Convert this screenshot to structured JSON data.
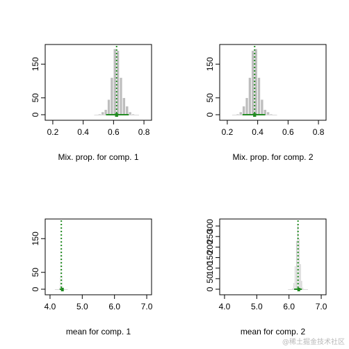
{
  "chart_data": [
    {
      "type": "bar",
      "xlabel": "Mix. prop. for comp. 1",
      "xlim": [
        0.15,
        0.85
      ],
      "ylim": [
        0,
        200
      ],
      "xticks": [
        "0.2",
        "0.4",
        "0.6",
        "0.8"
      ],
      "xtick_values": [
        0.2,
        0.4,
        0.6,
        0.8
      ],
      "yticks": [
        "0",
        "50",
        "150"
      ],
      "ytick_values": [
        0,
        50,
        150
      ],
      "bins": [
        {
          "x0": 0.5,
          "x1": 0.52,
          "count": 2
        },
        {
          "x0": 0.52,
          "x1": 0.54,
          "count": 8
        },
        {
          "x0": 0.54,
          "x1": 0.56,
          "count": 15
        },
        {
          "x0": 0.56,
          "x1": 0.58,
          "count": 45
        },
        {
          "x0": 0.58,
          "x1": 0.6,
          "count": 110
        },
        {
          "x0": 0.6,
          "x1": 0.62,
          "count": 195
        },
        {
          "x0": 0.62,
          "x1": 0.64,
          "count": 190
        },
        {
          "x0": 0.64,
          "x1": 0.66,
          "count": 110
        },
        {
          "x0": 0.66,
          "x1": 0.68,
          "count": 50
        },
        {
          "x0": 0.68,
          "x1": 0.7,
          "count": 25
        },
        {
          "x0": 0.7,
          "x1": 0.72,
          "count": 8
        },
        {
          "x0": 0.72,
          "x1": 0.74,
          "count": 2
        }
      ],
      "mean_line": 0.62,
      "interval": [
        0.55,
        0.7
      ],
      "interval_inner": [
        0.61,
        0.63
      ],
      "colors": {
        "bars": "#bebebe",
        "marker": "#228b22"
      }
    },
    {
      "type": "bar",
      "xlabel": "Mix. prop. for comp. 2",
      "xlim": [
        0.15,
        0.85
      ],
      "ylim": [
        0,
        200
      ],
      "xticks": [
        "0.2",
        "0.4",
        "0.6",
        "0.8"
      ],
      "xtick_values": [
        0.2,
        0.4,
        0.6,
        0.8
      ],
      "yticks": [
        "0",
        "50",
        "150"
      ],
      "ytick_values": [
        0,
        50,
        150
      ],
      "bins": [
        {
          "x0": 0.26,
          "x1": 0.28,
          "count": 2
        },
        {
          "x0": 0.28,
          "x1": 0.3,
          "count": 8
        },
        {
          "x0": 0.3,
          "x1": 0.32,
          "count": 25
        },
        {
          "x0": 0.32,
          "x1": 0.34,
          "count": 50
        },
        {
          "x0": 0.34,
          "x1": 0.36,
          "count": 110
        },
        {
          "x0": 0.36,
          "x1": 0.38,
          "count": 190
        },
        {
          "x0": 0.38,
          "x1": 0.4,
          "count": 195
        },
        {
          "x0": 0.4,
          "x1": 0.42,
          "count": 110
        },
        {
          "x0": 0.42,
          "x1": 0.44,
          "count": 45
        },
        {
          "x0": 0.44,
          "x1": 0.46,
          "count": 15
        },
        {
          "x0": 0.46,
          "x1": 0.48,
          "count": 8
        },
        {
          "x0": 0.48,
          "x1": 0.5,
          "count": 2
        }
      ],
      "mean_line": 0.38,
      "interval": [
        0.3,
        0.45
      ],
      "interval_inner": [
        0.37,
        0.39
      ],
      "colors": {
        "bars": "#bebebe",
        "marker": "#228b22"
      }
    },
    {
      "type": "bar",
      "xlabel": "mean for comp. 1",
      "xlim": [
        3.85,
        7.15
      ],
      "ylim": [
        0,
        200
      ],
      "xticks": [
        "4.0",
        "5.0",
        "6.0",
        "7.0"
      ],
      "xtick_values": [
        4.0,
        5.0,
        6.0,
        7.0
      ],
      "yticks": [
        "0",
        "50",
        "150"
      ],
      "ytick_values": [
        0,
        50,
        150
      ],
      "bins": [
        {
          "x0": 4.28,
          "x1": 4.3,
          "count": 6
        },
        {
          "x0": 4.3,
          "x1": 4.32,
          "count": 35
        },
        {
          "x0": 4.32,
          "x1": 4.34,
          "count": 120
        },
        {
          "x0": 4.34,
          "x1": 4.36,
          "count": 180
        },
        {
          "x0": 4.36,
          "x1": 4.38,
          "count": 110
        },
        {
          "x0": 4.38,
          "x1": 4.4,
          "count": 40
        },
        {
          "x0": 4.4,
          "x1": 4.42,
          "count": 8
        }
      ],
      "mean_line": 4.35,
      "interval": [
        4.3,
        4.41
      ],
      "interval_inner": [
        4.34,
        4.36
      ],
      "colors": {
        "bars": "#bebebe",
        "marker": "#228b22"
      }
    },
    {
      "type": "bar",
      "xlabel": "mean for comp. 2",
      "xlim": [
        3.85,
        7.15
      ],
      "ylim": [
        0,
        320
      ],
      "xticks": [
        "4.0",
        "5.0",
        "6.0",
        "7.0"
      ],
      "xtick_values": [
        4.0,
        5.0,
        6.0,
        7.0
      ],
      "yticks": [
        "0",
        "50",
        "150",
        "250"
      ],
      "ytick_values": [
        0,
        50,
        150,
        250
      ],
      "extra_ytick_labels": [
        "100",
        "200",
        "300"
      ],
      "extra_ytick_values": [
        100,
        200,
        300
      ],
      "bins": [
        {
          "x0": 6.1,
          "x1": 6.14,
          "count": 5
        },
        {
          "x0": 6.14,
          "x1": 6.18,
          "count": 30
        },
        {
          "x0": 6.18,
          "x1": 6.22,
          "count": 110
        },
        {
          "x0": 6.22,
          "x1": 6.26,
          "count": 230
        },
        {
          "x0": 6.26,
          "x1": 6.3,
          "count": 310
        },
        {
          "x0": 6.3,
          "x1": 6.34,
          "count": 240
        },
        {
          "x0": 6.34,
          "x1": 6.38,
          "count": 120
        },
        {
          "x0": 6.38,
          "x1": 6.42,
          "count": 40
        },
        {
          "x0": 6.42,
          "x1": 6.46,
          "count": 8
        }
      ],
      "mean_line": 6.28,
      "interval": [
        6.16,
        6.4
      ],
      "interval_inner": [
        6.26,
        6.31
      ],
      "colors": {
        "bars": "#bebebe",
        "marker": "#228b22"
      }
    }
  ],
  "watermark": "@稀土掘金技术社区"
}
